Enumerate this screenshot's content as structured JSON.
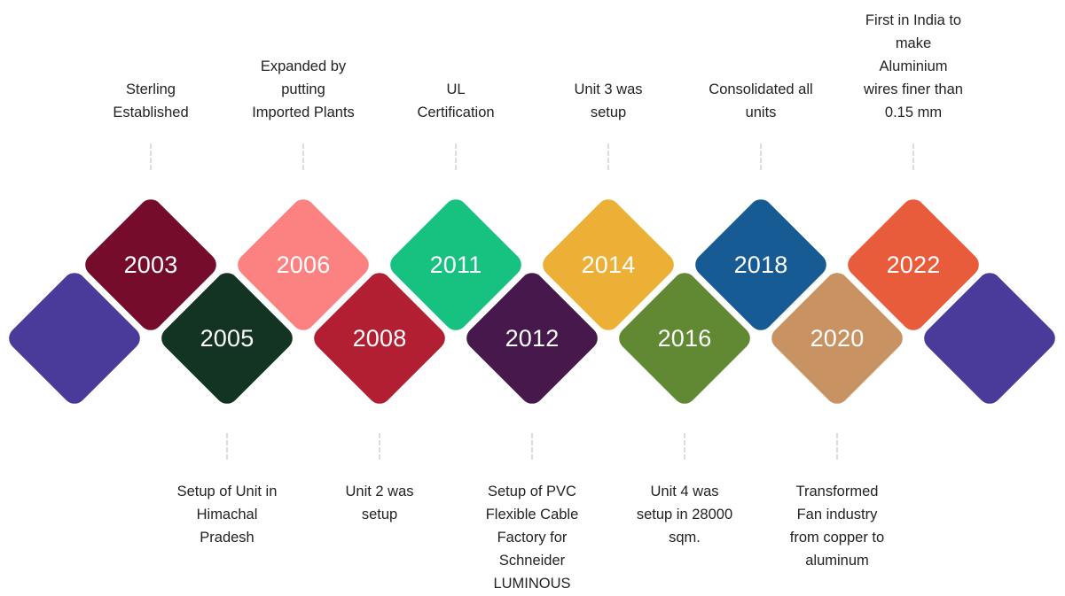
{
  "milestones": [
    {
      "year": "2003",
      "caption": "Sterling\nEstablished",
      "color": "#750C2B",
      "position": "top"
    },
    {
      "year": "2005",
      "caption": "Setup of Unit in\nHimachal\nPradesh",
      "color": "#133422",
      "position": "bottom"
    },
    {
      "year": "2006",
      "caption": "Expanded by\nputting\nImported Plants",
      "color": "#FC8282",
      "position": "top"
    },
    {
      "year": "2008",
      "caption": "Unit 2 was\nsetup",
      "color": "#B21F32",
      "position": "bottom"
    },
    {
      "year": "2011",
      "caption": "UL\nCertification",
      "color": "#17C281",
      "position": "top"
    },
    {
      "year": "2012",
      "caption": "Setup of PVC\nFlexible Cable\nFactory for\nSchneider\nLUMINOUS",
      "color": "#46184C",
      "position": "bottom"
    },
    {
      "year": "2014",
      "caption": "Unit 3 was\nsetup",
      "color": "#EDB036",
      "position": "top"
    },
    {
      "year": "2016",
      "caption": "Unit 4 was\nsetup in 28000\nsqm.",
      "color": "#618833",
      "position": "bottom"
    },
    {
      "year": "2018",
      "caption": "Consolidated all\nunits",
      "color": "#175B94",
      "position": "top"
    },
    {
      "year": "2020",
      "caption": "Transformed\nFan industry\nfrom copper to\naluminum",
      "color": "#C99263",
      "position": "bottom"
    },
    {
      "year": "2022",
      "caption": "First in India to\nmake\nAluminium\nwires finer than\n0.15 mm",
      "color": "#E85B3B",
      "position": "top"
    }
  ],
  "end_caps": {
    "color": "#4A3B9A"
  }
}
